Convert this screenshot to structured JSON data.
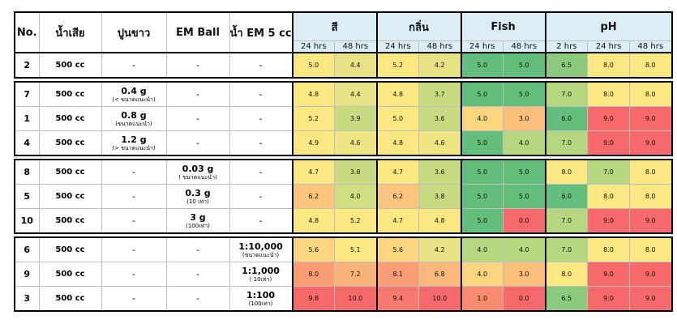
{
  "headers": {
    "no": "No.",
    "wastewater": "น้ำเสีย",
    "lime": "ปูนขาว",
    "em_ball": "EM Ball",
    "em_water": "น้ำ EM 5 cc",
    "color": "สี",
    "odor": "กลิ่น",
    "fish": "Fish",
    "ph": "pH"
  },
  "sub_headers": {
    "color": [
      "24 hrs",
      "48 hrs"
    ],
    "odor": [
      "24 hrs",
      "48 hrs"
    ],
    "fish": [
      "24 hrs",
      "48 hrs"
    ],
    "ph": [
      "2 hrs",
      "24 hrs",
      "48 hrs"
    ]
  },
  "heat_colors": {
    "dark_green": "#63be7b",
    "light_green": "#b5d780",
    "yellow_green": "#d2de82",
    "yellow": "#fce883",
    "light_orange": "#fcbf7b",
    "orange": "#fa9d75",
    "red": "#f8696b"
  },
  "rows": [
    {
      "no": "2",
      "wastewater": "500 cc",
      "lime": {
        "main": "-",
        "sub": ""
      },
      "em_ball": {
        "main": "-",
        "sub": ""
      },
      "em_water": {
        "main": "-",
        "sub": ""
      },
      "color": [
        "5.0",
        "4.4"
      ],
      "odor": [
        "5.2",
        "4.2"
      ],
      "fish": [
        "5.0",
        "5.0"
      ],
      "ph": [
        "6.5",
        "8.0",
        "8.0"
      ],
      "bg": [
        "#fce883",
        "#e7e283",
        "#fce883",
        "#e7e283",
        "#63be7b",
        "#63be7b",
        "#8cca7e",
        "#fce883",
        "#fce883"
      ]
    },
    {
      "no": "7",
      "wastewater": "500 cc",
      "lime": {
        "main": "0.4 g",
        "sub": "(< ขนาดแนะนำ)"
      },
      "em_ball": {
        "main": "-",
        "sub": ""
      },
      "em_water": {
        "main": "-",
        "sub": ""
      },
      "color": [
        "4.8",
        "4.4"
      ],
      "odor": [
        "4.8",
        "3.7"
      ],
      "fish": [
        "5.0",
        "5.0"
      ],
      "ph": [
        "7.0",
        "8.0",
        "8.0"
      ],
      "bg": [
        "#fce883",
        "#e7e283",
        "#fce883",
        "#c8db81",
        "#63be7b",
        "#63be7b",
        "#b5d780",
        "#fce883",
        "#fce883"
      ]
    },
    {
      "no": "1",
      "wastewater": "500 cc",
      "lime": {
        "main": "0.8 g",
        "sub": "(ขนาดแนะนำ)"
      },
      "em_ball": {
        "main": "-",
        "sub": ""
      },
      "em_water": {
        "main": "-",
        "sub": ""
      },
      "color": [
        "5.2",
        "3.9"
      ],
      "odor": [
        "5.0",
        "3.6"
      ],
      "fish": [
        "4.0",
        "3.0"
      ],
      "ph": [
        "6.0",
        "9.0",
        "9.0"
      ],
      "bg": [
        "#fce883",
        "#c8db81",
        "#fce883",
        "#c8db81",
        "#fcd580",
        "#fcbf7b",
        "#63be7b",
        "#f8696b",
        "#f8696b"
      ]
    },
    {
      "no": "4",
      "wastewater": "500 cc",
      "lime": {
        "main": "1.2 g",
        "sub": "(> ขนาดแนะนำ)"
      },
      "em_ball": {
        "main": "-",
        "sub": ""
      },
      "em_water": {
        "main": "-",
        "sub": ""
      },
      "color": [
        "4.9",
        "4.6"
      ],
      "odor": [
        "4.8",
        "4.6"
      ],
      "fish": [
        "5.0",
        "4.0"
      ],
      "ph": [
        "7.0",
        "9.0",
        "9.0"
      ],
      "bg": [
        "#fce883",
        "#f0e583",
        "#fce883",
        "#f0e583",
        "#63be7b",
        "#b5d780",
        "#b5d780",
        "#f8696b",
        "#f8696b"
      ]
    },
    {
      "no": "8",
      "wastewater": "500 cc",
      "lime": {
        "main": "-",
        "sub": ""
      },
      "em_ball": {
        "main": "0.03 g",
        "sub": "( ขนาดแนะนำ)"
      },
      "em_water": {
        "main": "-",
        "sub": ""
      },
      "color": [
        "4.7",
        "3.8"
      ],
      "odor": [
        "4.7",
        "3.6"
      ],
      "fish": [
        "5.0",
        "5.0"
      ],
      "ph": [
        "8.0",
        "7.0",
        "8.0"
      ],
      "bg": [
        "#fce883",
        "#c8db81",
        "#fce883",
        "#c8db81",
        "#63be7b",
        "#63be7b",
        "#fce883",
        "#b5d780",
        "#fce883"
      ]
    },
    {
      "no": "5",
      "wastewater": "500 cc",
      "lime": {
        "main": "-",
        "sub": ""
      },
      "em_ball": {
        "main": "0.3 g",
        "sub": "(10 เท่า)"
      },
      "em_water": {
        "main": "-",
        "sub": ""
      },
      "color": [
        "6.2",
        "4.0"
      ],
      "odor": [
        "6.2",
        "3.8"
      ],
      "fish": [
        "5.0",
        "5.0"
      ],
      "ph": [
        "6.0",
        "8.0",
        "8.0"
      ],
      "bg": [
        "#fcc47c",
        "#d2de82",
        "#fcc47c",
        "#c8db81",
        "#63be7b",
        "#63be7b",
        "#63be7b",
        "#fce883",
        "#fce883"
      ]
    },
    {
      "no": "10",
      "wastewater": "500 cc",
      "lime": {
        "main": "-",
        "sub": ""
      },
      "em_ball": {
        "main": "3 g",
        "sub": "(100เท่า)"
      },
      "em_water": {
        "main": "-",
        "sub": ""
      },
      "color": [
        "4.8",
        "5.2"
      ],
      "odor": [
        "4.7",
        "4.8"
      ],
      "fish": [
        "5.0",
        "0.0"
      ],
      "ph": [
        "7.0",
        "9.0",
        "9.0"
      ],
      "bg": [
        "#fce883",
        "#fce883",
        "#fce883",
        "#fce883",
        "#63be7b",
        "#f8696b",
        "#b5d780",
        "#f8696b",
        "#f8696b"
      ]
    },
    {
      "no": "6",
      "wastewater": "500 cc",
      "lime": {
        "main": "-",
        "sub": ""
      },
      "em_ball": {
        "main": "-",
        "sub": ""
      },
      "em_water": {
        "main": "1:10,000",
        "sub": "(ขนาดแนะนำ)"
      },
      "color": [
        "5.6",
        "5.1"
      ],
      "odor": [
        "5.6",
        "4.2"
      ],
      "fish": [
        "4.0",
        "4.0"
      ],
      "ph": [
        "7.0",
        "8.0",
        "8.0"
      ],
      "bg": [
        "#fcd580",
        "#fce883",
        "#fcd580",
        "#e7e283",
        "#b5d780",
        "#b5d780",
        "#b5d780",
        "#fce883",
        "#fce883"
      ]
    },
    {
      "no": "9",
      "wastewater": "500 cc",
      "lime": {
        "main": "-",
        "sub": ""
      },
      "em_ball": {
        "main": "-",
        "sub": ""
      },
      "em_water": {
        "main": "1:1,000",
        "sub": "( 10เท่า)"
      },
      "color": [
        "8.0",
        "7.2"
      ],
      "odor": [
        "8.1",
        "6.8"
      ],
      "fish": [
        "4.0",
        "3.0"
      ],
      "ph": [
        "8.0",
        "9.0",
        "9.0"
      ],
      "bg": [
        "#fa9d75",
        "#fbb279",
        "#fa9d75",
        "#fbb87a",
        "#fcd580",
        "#fcbf7b",
        "#fce883",
        "#f8696b",
        "#f8696b"
      ]
    },
    {
      "no": "3",
      "wastewater": "500 cc",
      "lime": {
        "main": "-",
        "sub": ""
      },
      "em_ball": {
        "main": "-",
        "sub": ""
      },
      "em_water": {
        "main": "1:100",
        "sub": "(100เท่า)"
      },
      "color": [
        "9.8",
        "10.0"
      ],
      "odor": [
        "9.4",
        "10.0"
      ],
      "fish": [
        "1.0",
        "0.0"
      ],
      "ph": [
        "6.5",
        "9.0",
        "9.0"
      ],
      "bg": [
        "#f8696b",
        "#f8696b",
        "#f87a6e",
        "#f8696b",
        "#f98b71",
        "#f8696b",
        "#8cca7e",
        "#f8696b",
        "#f8696b"
      ]
    }
  ]
}
